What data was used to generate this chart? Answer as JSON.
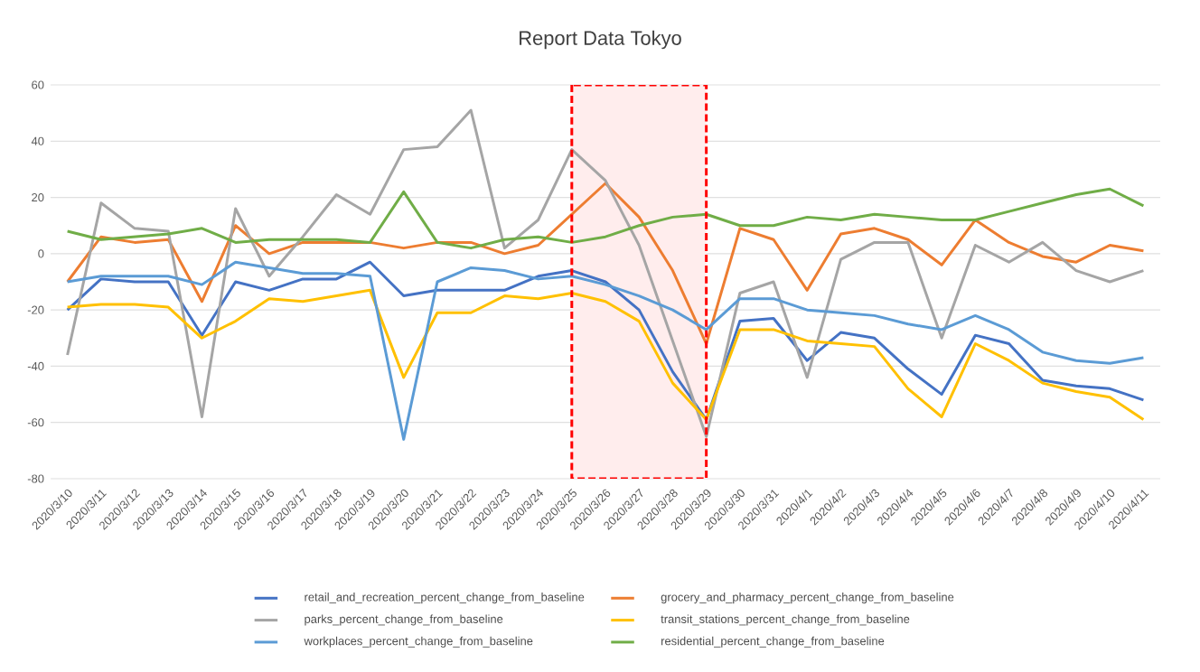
{
  "chart_data": {
    "type": "line",
    "title": "Report Data Tokyo",
    "categories": [
      "2020/3/10",
      "2020/3/11",
      "2020/3/12",
      "2020/3/13",
      "2020/3/14",
      "2020/3/15",
      "2020/3/16",
      "2020/3/17",
      "2020/3/18",
      "2020/3/19",
      "2020/3/20",
      "2020/3/21",
      "2020/3/22",
      "2020/3/23",
      "2020/3/24",
      "2020/3/25",
      "2020/3/26",
      "2020/3/27",
      "2020/3/28",
      "2020/3/29",
      "2020/3/30",
      "2020/3/31",
      "2020/4/1",
      "2020/4/2",
      "2020/4/3",
      "2020/4/4",
      "2020/4/5",
      "2020/4/6",
      "2020/4/7",
      "2020/4/8",
      "2020/4/9",
      "2020/4/10",
      "2020/4/11"
    ],
    "series": [
      {
        "name": "retail_and_recreation_percent_change_from_baseline",
        "color": "#4472c4",
        "values": [
          -20,
          -9,
          -10,
          -10,
          -29,
          -10,
          -13,
          -9,
          -9,
          -3,
          -15,
          -13,
          -13,
          -13,
          -8,
          -6,
          -10,
          -20,
          -42,
          -59,
          -24,
          -23,
          -38,
          -28,
          -30,
          -41,
          -50,
          -29,
          -32,
          -45,
          -47,
          -48,
          -52
        ]
      },
      {
        "name": "grocery_and_pharmacy_percent_change_from_baseline",
        "color": "#ed7d31",
        "values": [
          -10,
          6,
          4,
          5,
          -17,
          10,
          0,
          4,
          4,
          4,
          2,
          4,
          4,
          0,
          3,
          14,
          25,
          13,
          -6,
          -32,
          9,
          5,
          -13,
          7,
          9,
          5,
          -4,
          12,
          4,
          -1,
          -3,
          3,
          1
        ]
      },
      {
        "name": "parks_percent_change_from_baseline",
        "color": "#a5a5a5",
        "values": [
          -36,
          18,
          9,
          8,
          -58,
          16,
          -8,
          6,
          21,
          14,
          37,
          38,
          51,
          2,
          12,
          37,
          26,
          3,
          -31,
          -65,
          -14,
          -10,
          -44,
          -2,
          4,
          4,
          -30,
          3,
          -3,
          4,
          -6,
          -10,
          -6
        ]
      },
      {
        "name": "transit_stations_percent_change_from_baseline",
        "color": "#ffc000",
        "values": [
          -19,
          -18,
          -18,
          -19,
          -30,
          -24,
          -16,
          -17,
          -15,
          -13,
          -44,
          -21,
          -21,
          -15,
          -16,
          -14,
          -17,
          -24,
          -46,
          -59,
          -27,
          -27,
          -31,
          -32,
          -33,
          -48,
          -58,
          -32,
          -38,
          -46,
          -49,
          -51,
          -59
        ]
      },
      {
        "name": "workplaces_percent_change_from_baseline",
        "color": "#5b9bd5",
        "values": [
          -10,
          -8,
          -8,
          -8,
          -11,
          -3,
          -5,
          -7,
          -7,
          -8,
          -66,
          -10,
          -5,
          -6,
          -9,
          -8,
          -11,
          -15,
          -20,
          -27,
          -16,
          -16,
          -20,
          -21,
          -22,
          -25,
          -27,
          -22,
          -27,
          -35,
          -38,
          -39,
          -37
        ]
      },
      {
        "name": "residential_percent_change_from_baseline",
        "color": "#70ad47",
        "values": [
          8,
          5,
          6,
          7,
          9,
          4,
          5,
          5,
          5,
          4,
          22,
          4,
          2,
          5,
          6,
          4,
          6,
          10,
          13,
          14,
          10,
          10,
          13,
          12,
          14,
          13,
          12,
          12,
          15,
          18,
          21,
          23,
          17
        ]
      }
    ],
    "ylim": [
      -80,
      60
    ],
    "yticks": [
      -80,
      -60,
      -40,
      -20,
      0,
      20,
      40,
      60
    ],
    "grid": "y",
    "legend": "bottom",
    "marker": "none",
    "line_style": "solid",
    "bands": [
      {
        "axis": "x",
        "from": "2020/3/25",
        "to": "2020/3/29"
      }
    ]
  }
}
